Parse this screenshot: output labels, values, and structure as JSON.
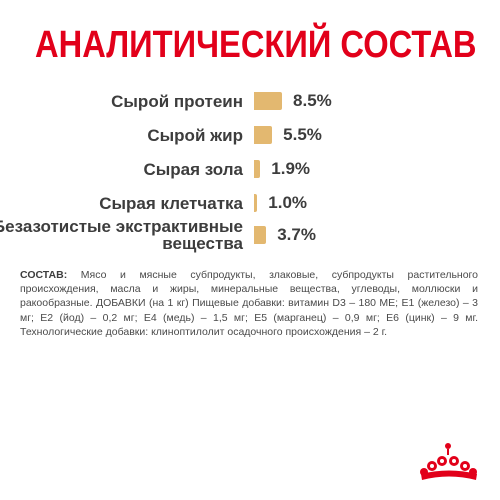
{
  "title": "АНАЛИТИЧЕСКИЙ СОСТАВ",
  "colors": {
    "title": "#e2001a",
    "bar": "#e3b870",
    "text": "#3d3d3d",
    "logo": "#e2001a"
  },
  "analysis": [
    {
      "label": "Сырой протеин",
      "value": "8.5%",
      "percent": 8.5
    },
    {
      "label": "Сырой жир",
      "value": "5.5%",
      "percent": 5.5
    },
    {
      "label": "Сырая зола",
      "value": "1.9%",
      "percent": 1.9
    },
    {
      "label": "Сырая клетчатка",
      "value": "1.0%",
      "percent": 1.0
    },
    {
      "label_line1": "Безазотистые экстрактивные",
      "label_line2": "вещества",
      "value": "3.7%",
      "percent": 3.7
    }
  ],
  "composition": {
    "label": "СОСТАВ:",
    "text": " Мясо и мясные субпродукты, злаковые, субпродукты растительного происхождения, масла и жиры, минеральные вещества, углеводы, моллюски и ракообразные. ДОБАВКИ (на 1 кг) Пищевые добавки: витамин D3 – 180 МЕ; Е1 (железо) – 3 мг; Е2 (йод) – 0,2 мг; Е4 (медь) – 1,5 мг; Е5 (марганец) – 0,9 мг; Е6 (цинк) – 9 мг. Технологические добавки: клиноптилолит осадочного происхождения – 2 г."
  },
  "logo": {
    "icon": "crown-logo-icon"
  }
}
